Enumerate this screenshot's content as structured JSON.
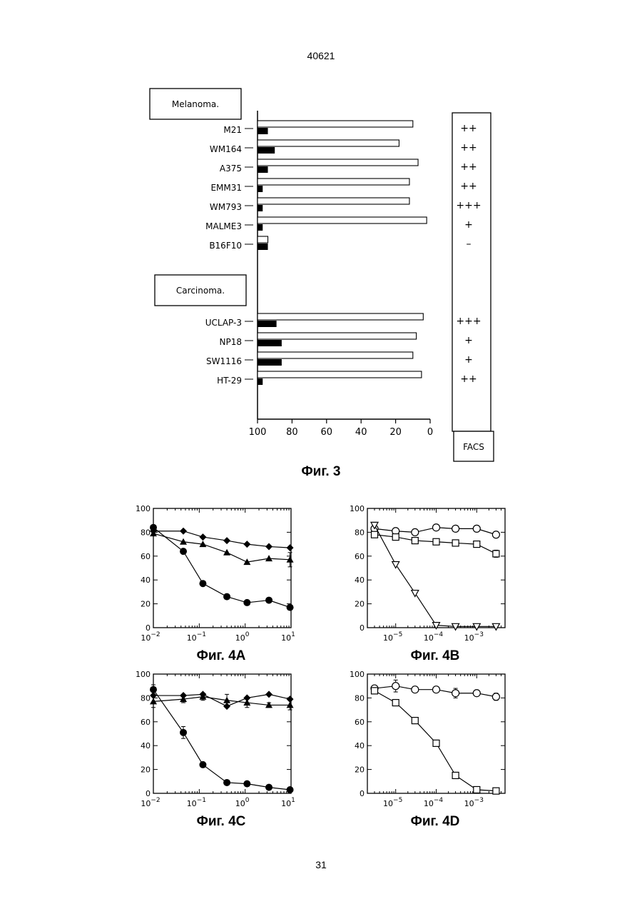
{
  "page": {
    "header_number": "40621",
    "page_number": "31"
  },
  "chart_data": [
    {
      "id": "fig3",
      "type": "bar",
      "caption": "Фиг. 3",
      "orientation": "horizontal-reversed",
      "xlim": [
        100,
        0
      ],
      "xticks": [
        "100",
        "80",
        "60",
        "40",
        "20",
        "0"
      ],
      "groups": [
        {
          "label": "Melanoma.",
          "categories": [
            "M21",
            "WM164",
            "A375",
            "EMM31",
            "WM793",
            "MALME3",
            "B16F10"
          ],
          "facs": [
            "++",
            "++",
            "++",
            "++",
            "+++",
            "+",
            "–"
          ],
          "series": [
            {
              "style": "open",
              "values": [
                10,
                18,
                7,
                12,
                12,
                2,
                94
              ]
            },
            {
              "style": "filled",
              "values": [
                94,
                90,
                94,
                97,
                97,
                97,
                94
              ]
            }
          ]
        },
        {
          "label": "Carcinoma.",
          "categories": [
            "UCLAP-3",
            "NP18",
            "SW1116",
            "HT-29"
          ],
          "facs": [
            "+++",
            "+",
            "+",
            "++"
          ],
          "series": [
            {
              "style": "open",
              "values": [
                4,
                8,
                10,
                5
              ]
            },
            {
              "style": "filled",
              "values": [
                89,
                86,
                86,
                97
              ]
            }
          ]
        }
      ],
      "facs_label": "FACS"
    },
    {
      "id": "fig4a",
      "type": "line",
      "caption": "Фиг. 4А",
      "xscale": "log",
      "xlim": [
        0.01,
        10
      ],
      "ylim": [
        0,
        100
      ],
      "yticks": [
        "0",
        "20",
        "40",
        "60",
        "80",
        "100"
      ],
      "xticks": [
        {
          "base": "10",
          "exp": "−2"
        },
        {
          "base": "10",
          "exp": "−1"
        },
        {
          "base": "10",
          "exp": "0"
        },
        {
          "base": "10",
          "exp": "1"
        }
      ],
      "series": [
        {
          "marker": "filled-circle",
          "x": [
            0.01,
            0.045,
            0.12,
            0.4,
            1.1,
            3.3,
            9.5
          ],
          "y": [
            84,
            64,
            37,
            26,
            21,
            23,
            17
          ]
        },
        {
          "marker": "filled-diamond",
          "x": [
            0.01,
            0.045,
            0.12,
            0.4,
            1.1,
            3.3,
            9.5
          ],
          "y": [
            81,
            81,
            76,
            73,
            70,
            68,
            67
          ]
        },
        {
          "marker": "filled-triangle",
          "x": [
            0.01,
            0.045,
            0.12,
            0.4,
            1.1,
            3.3,
            9.5
          ],
          "y": [
            79,
            72,
            70,
            63,
            55,
            58,
            57
          ],
          "errors": [
            0,
            0,
            0,
            0,
            0,
            0,
            6
          ]
        }
      ]
    },
    {
      "id": "fig4b",
      "type": "line",
      "caption": "Фиг. 4В",
      "xscale": "log",
      "xlim": [
        2e-06,
        0.005
      ],
      "ylim": [
        0,
        100
      ],
      "yticks": [
        "0",
        "20",
        "40",
        "60",
        "80",
        "100"
      ],
      "xticks": [
        {
          "base": "10",
          "exp": "−5"
        },
        {
          "base": "10",
          "exp": "−4"
        },
        {
          "base": "10",
          "exp": "−3"
        }
      ],
      "series": [
        {
          "marker": "open-circle",
          "x": [
            3e-06,
            1e-05,
            3e-05,
            0.0001,
            0.0003,
            0.001,
            0.003
          ],
          "y": [
            83,
            81,
            80,
            84,
            83,
            83,
            78
          ]
        },
        {
          "marker": "open-square",
          "x": [
            3e-06,
            1e-05,
            3e-05,
            0.0001,
            0.0003,
            0.001,
            0.003
          ],
          "y": [
            78,
            76,
            73,
            72,
            71,
            70,
            62
          ],
          "errors": [
            0,
            0,
            0,
            0,
            0,
            0,
            3
          ]
        },
        {
          "marker": "open-triangle-down",
          "x": [
            3e-06,
            1e-05,
            3e-05,
            0.0001,
            0.0003,
            0.001,
            0.003
          ],
          "y": [
            86,
            53,
            29,
            2,
            1,
            1,
            1
          ]
        }
      ]
    },
    {
      "id": "fig4c",
      "type": "line",
      "caption": "Фиг. 4С",
      "xscale": "log",
      "xlim": [
        0.01,
        10
      ],
      "ylim": [
        0,
        100
      ],
      "yticks": [
        "0",
        "20",
        "40",
        "60",
        "80",
        "100"
      ],
      "xticks": [
        {
          "base": "10",
          "exp": "−2"
        },
        {
          "base": "10",
          "exp": "−1"
        },
        {
          "base": "10",
          "exp": "0"
        },
        {
          "base": "10",
          "exp": "1"
        }
      ],
      "series": [
        {
          "marker": "filled-circle",
          "x": [
            0.01,
            0.045,
            0.12,
            0.4,
            1.1,
            3.3,
            9.5
          ],
          "y": [
            87,
            51,
            24,
            9,
            8,
            5,
            3
          ],
          "errors": [
            4,
            5,
            0,
            0,
            0,
            0,
            0
          ]
        },
        {
          "marker": "filled-diamond",
          "x": [
            0.01,
            0.045,
            0.12,
            0.4,
            1.1,
            3.3,
            9.5
          ],
          "y": [
            82,
            82,
            83,
            73,
            80,
            83,
            79
          ]
        },
        {
          "marker": "filled-triangle",
          "x": [
            0.01,
            0.045,
            0.12,
            0.4,
            1.1,
            3.3,
            9.5
          ],
          "y": [
            77,
            79,
            81,
            78,
            76,
            74,
            74
          ],
          "errors": [
            5,
            3,
            3,
            5,
            4,
            2,
            4
          ]
        }
      ]
    },
    {
      "id": "fig4d",
      "type": "line",
      "caption": "Фиг. 4D",
      "xscale": "log",
      "xlim": [
        2e-06,
        0.005
      ],
      "ylim": [
        0,
        100
      ],
      "yticks": [
        "0",
        "20",
        "40",
        "60",
        "80",
        "100"
      ],
      "xticks": [
        {
          "base": "10",
          "exp": "−5"
        },
        {
          "base": "10",
          "exp": "−4"
        },
        {
          "base": "10",
          "exp": "−3"
        }
      ],
      "series": [
        {
          "marker": "open-circle",
          "x": [
            3e-06,
            1e-05,
            3e-05,
            0.0001,
            0.0003,
            0.001,
            0.003
          ],
          "y": [
            88,
            90,
            87,
            87,
            84,
            84,
            81
          ],
          "errors": [
            0,
            5,
            0,
            0,
            4,
            0,
            3
          ]
        },
        {
          "marker": "open-square",
          "x": [
            3e-06,
            1e-05,
            3e-05,
            0.0001,
            0.0003,
            0.001,
            0.003
          ],
          "y": [
            86,
            76,
            61,
            42,
            15,
            3,
            2
          ]
        }
      ]
    }
  ]
}
